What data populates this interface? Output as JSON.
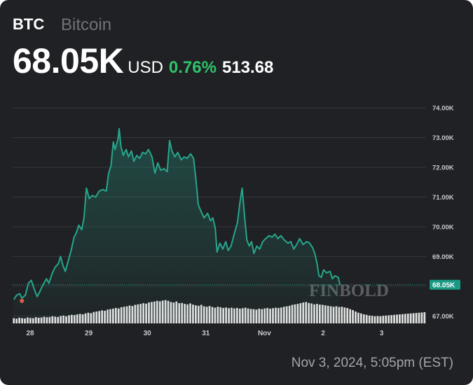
{
  "header": {
    "symbol": "BTC",
    "name": "Bitcoin",
    "price": "68.05K",
    "currency": "USD",
    "change_percent": "0.76%",
    "change_value": "513.68"
  },
  "timestamp": "Nov 3, 2024, 5:05pm (EST)",
  "watermark": "FINBOLD",
  "colors": {
    "background": "#1f2124",
    "line": "#27a58c",
    "positive": "#2fc36a",
    "price_tag": "#1a9a85",
    "volume": "#e2e2e2"
  },
  "chart_data": {
    "type": "area",
    "title": "",
    "xlabel": "",
    "ylabel": "",
    "ylim": [
      66.75,
      74.4
    ],
    "grid": true,
    "y_ticks": [
      "74.00K",
      "73.00K",
      "72.00K",
      "71.00K",
      "70.00K",
      "69.00K",
      "68.00K",
      "67.00K"
    ],
    "y_tick_values": [
      74,
      73,
      72,
      71,
      70,
      69,
      68,
      67
    ],
    "x_ticks": [
      "28",
      "29",
      "30",
      "31",
      "Nov",
      "2",
      "3"
    ],
    "x_tick_days": [
      1,
      2,
      3,
      4,
      5,
      6,
      7
    ],
    "x_range": [
      0.72,
      7.74
    ],
    "last_price_label": "68.05K",
    "last_price": 68.05,
    "series": [
      {
        "unit": "K USD",
        "points": [
          [
            0.72,
            67.55
          ],
          [
            0.77,
            67.7
          ],
          [
            0.82,
            67.75
          ],
          [
            0.86,
            67.6
          ],
          [
            0.92,
            67.7
          ],
          [
            0.97,
            68.1
          ],
          [
            1.02,
            68.2
          ],
          [
            1.07,
            67.9
          ],
          [
            1.12,
            67.65
          ],
          [
            1.16,
            67.8
          ],
          [
            1.22,
            68.05
          ],
          [
            1.28,
            68.25
          ],
          [
            1.32,
            68.1
          ],
          [
            1.38,
            68.45
          ],
          [
            1.43,
            68.65
          ],
          [
            1.48,
            68.75
          ],
          [
            1.52,
            69.0
          ],
          [
            1.56,
            68.7
          ],
          [
            1.6,
            68.5
          ],
          [
            1.65,
            68.85
          ],
          [
            1.7,
            69.2
          ],
          [
            1.75,
            69.65
          ],
          [
            1.79,
            69.8
          ],
          [
            1.83,
            70.05
          ],
          [
            1.88,
            69.9
          ],
          [
            1.92,
            70.3
          ],
          [
            1.96,
            71.3
          ],
          [
            2.01,
            70.95
          ],
          [
            2.06,
            71.05
          ],
          [
            2.12,
            71.0
          ],
          [
            2.18,
            71.2
          ],
          [
            2.24,
            71.25
          ],
          [
            2.3,
            71.2
          ],
          [
            2.34,
            71.8
          ],
          [
            2.38,
            72.05
          ],
          [
            2.42,
            72.85
          ],
          [
            2.45,
            72.6
          ],
          [
            2.5,
            72.95
          ],
          [
            2.52,
            73.3
          ],
          [
            2.55,
            72.7
          ],
          [
            2.59,
            72.4
          ],
          [
            2.64,
            72.6
          ],
          [
            2.68,
            72.35
          ],
          [
            2.73,
            72.55
          ],
          [
            2.77,
            72.2
          ],
          [
            2.82,
            72.4
          ],
          [
            2.87,
            72.3
          ],
          [
            2.92,
            72.5
          ],
          [
            2.97,
            72.45
          ],
          [
            3.02,
            72.6
          ],
          [
            3.08,
            72.35
          ],
          [
            3.13,
            71.8
          ],
          [
            3.18,
            72.15
          ],
          [
            3.23,
            71.9
          ],
          [
            3.29,
            71.95
          ],
          [
            3.34,
            71.85
          ],
          [
            3.38,
            72.9
          ],
          [
            3.42,
            72.55
          ],
          [
            3.47,
            72.35
          ],
          [
            3.52,
            72.5
          ],
          [
            3.58,
            72.25
          ],
          [
            3.63,
            72.35
          ],
          [
            3.68,
            72.3
          ],
          [
            3.74,
            72.45
          ],
          [
            3.79,
            72.3
          ],
          [
            3.83,
            71.6
          ],
          [
            3.87,
            70.75
          ],
          [
            3.91,
            70.55
          ],
          [
            3.97,
            70.3
          ],
          [
            4.03,
            70.45
          ],
          [
            4.08,
            70.2
          ],
          [
            4.12,
            70.3
          ],
          [
            4.16,
            69.95
          ],
          [
            4.19,
            69.15
          ],
          [
            4.24,
            69.45
          ],
          [
            4.29,
            69.25
          ],
          [
            4.34,
            69.5
          ],
          [
            4.38,
            69.2
          ],
          [
            4.43,
            69.35
          ],
          [
            4.49,
            69.8
          ],
          [
            4.54,
            70.15
          ],
          [
            4.58,
            70.8
          ],
          [
            4.62,
            71.3
          ],
          [
            4.66,
            70.35
          ],
          [
            4.7,
            69.55
          ],
          [
            4.74,
            69.35
          ],
          [
            4.78,
            69.5
          ],
          [
            4.82,
            69.1
          ],
          [
            4.87,
            69.35
          ],
          [
            4.92,
            69.25
          ],
          [
            4.97,
            69.5
          ],
          [
            5.02,
            69.6
          ],
          [
            5.08,
            69.7
          ],
          [
            5.13,
            69.65
          ],
          [
            5.18,
            69.75
          ],
          [
            5.23,
            69.6
          ],
          [
            5.28,
            69.7
          ],
          [
            5.34,
            69.55
          ],
          [
            5.4,
            69.45
          ],
          [
            5.45,
            69.5
          ],
          [
            5.5,
            69.25
          ],
          [
            5.55,
            69.4
          ],
          [
            5.6,
            69.6
          ],
          [
            5.66,
            69.4
          ],
          [
            5.72,
            69.5
          ],
          [
            5.77,
            69.45
          ],
          [
            5.82,
            69.3
          ],
          [
            5.86,
            69.1
          ],
          [
            5.9,
            68.75
          ],
          [
            5.93,
            68.35
          ],
          [
            5.97,
            68.3
          ],
          [
            6.01,
            68.55
          ],
          [
            6.06,
            68.45
          ],
          [
            6.12,
            68.5
          ],
          [
            6.16,
            68.25
          ],
          [
            6.2,
            68.35
          ],
          [
            6.26,
            68.3
          ],
          [
            6.29,
            68.05
          ]
        ]
      }
    ],
    "volume": {
      "unit": "relative height (0-1)",
      "bars_count": 150,
      "values": [
        0.22,
        0.2,
        0.24,
        0.22,
        0.21,
        0.25,
        0.23,
        0.22,
        0.26,
        0.24,
        0.25,
        0.28,
        0.26,
        0.27,
        0.3,
        0.28,
        0.27,
        0.31,
        0.33,
        0.3,
        0.34,
        0.36,
        0.35,
        0.38,
        0.4,
        0.38,
        0.42,
        0.45,
        0.43,
        0.48,
        0.5,
        0.52,
        0.55,
        0.53,
        0.58,
        0.6,
        0.62,
        0.65,
        0.63,
        0.68,
        0.7,
        0.72,
        0.75,
        0.73,
        0.78,
        0.8,
        0.82,
        0.85,
        0.83,
        0.88,
        0.9,
        0.92,
        0.95,
        0.93,
        0.96,
        0.98,
        0.95,
        0.9,
        0.88,
        0.92,
        0.85,
        0.86,
        0.82,
        0.8,
        0.84,
        0.79,
        0.76,
        0.74,
        0.78,
        0.72,
        0.7,
        0.73,
        0.69,
        0.66,
        0.7,
        0.68,
        0.65,
        0.67,
        0.64,
        0.66,
        0.63,
        0.65,
        0.62,
        0.64,
        0.66,
        0.63,
        0.61,
        0.6,
        0.58,
        0.62,
        0.6,
        0.63,
        0.65,
        0.62,
        0.64,
        0.66,
        0.65,
        0.67,
        0.7,
        0.72,
        0.74,
        0.78,
        0.8,
        0.82,
        0.85,
        0.88,
        0.9,
        0.86,
        0.84,
        0.8,
        0.82,
        0.79,
        0.78,
        0.76,
        0.74,
        0.72,
        0.7,
        0.72,
        0.69,
        0.7,
        0.67,
        0.65,
        0.6,
        0.56,
        0.5,
        0.45,
        0.42,
        0.38,
        0.36,
        0.33,
        0.32,
        0.3,
        0.31,
        0.3,
        0.32,
        0.33,
        0.34,
        0.35,
        0.36,
        0.37,
        0.38,
        0.39,
        0.4,
        0.41,
        0.42,
        0.43,
        0.44,
        0.45,
        0.46,
        0.47
      ]
    }
  }
}
